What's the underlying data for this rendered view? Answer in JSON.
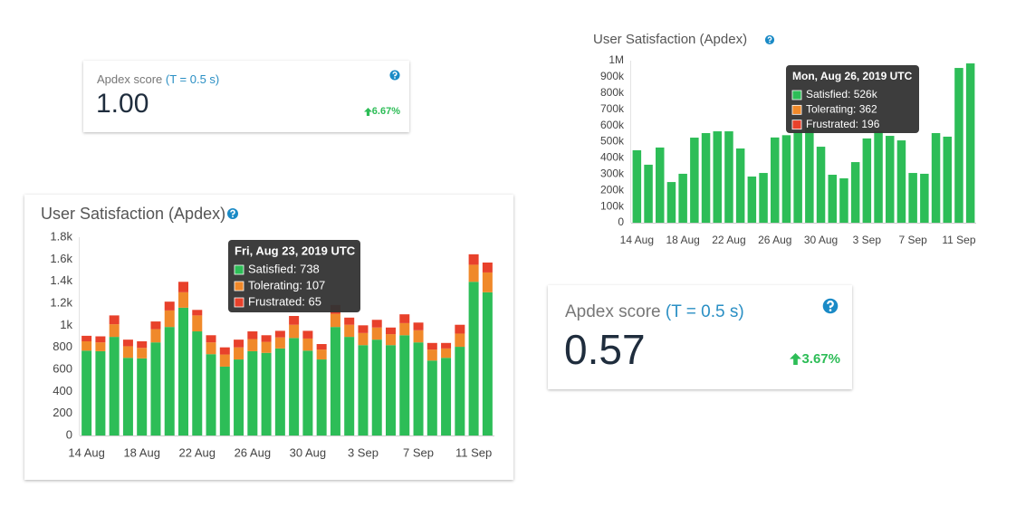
{
  "cards": [
    {
      "label": "Apdex score",
      "threshold": "(T = 0.5 s)",
      "score": "1.00",
      "change": "6.67%"
    },
    {
      "label": "Apdex score",
      "threshold": "(T = 0.5 s)",
      "score": "0.57",
      "change": "3.67%"
    }
  ],
  "chart_data": [
    {
      "type": "bar",
      "stacked": true,
      "title": "User Satisfaction (Apdex)",
      "grid": false,
      "categories": [
        "14 Aug",
        null,
        null,
        null,
        "18 Aug",
        null,
        null,
        null,
        "22 Aug",
        null,
        null,
        null,
        "26 Aug",
        null,
        null,
        null,
        "30 Aug",
        null,
        null,
        null,
        "3 Sep",
        null,
        null,
        null,
        "7 Sep",
        null,
        null,
        null,
        "11 Sep",
        null
      ],
      "series": [
        {
          "name": "Satisfied",
          "color": "#2dbd57",
          "values": [
            770,
            765,
            895,
            705,
            700,
            845,
            985,
            1160,
            945,
            738,
            625,
            690,
            765,
            750,
            790,
            885,
            770,
            690,
            985,
            895,
            820,
            870,
            820,
            910,
            845,
            680,
            705,
            805,
            1395,
            1300
          ]
        },
        {
          "name": "Tolerating",
          "color": "#f0892a",
          "values": [
            85,
            80,
            115,
            105,
            95,
            120,
            150,
            140,
            145,
            107,
            110,
            110,
            110,
            100,
            100,
            120,
            110,
            90,
            120,
            110,
            110,
            110,
            100,
            110,
            110,
            100,
            85,
            120,
            155,
            180
          ]
        },
        {
          "name": "Frustrated",
          "color": "#e8412b",
          "values": [
            50,
            55,
            80,
            60,
            60,
            70,
            80,
            95,
            50,
            65,
            65,
            70,
            70,
            60,
            60,
            80,
            70,
            50,
            80,
            65,
            70,
            70,
            60,
            80,
            70,
            60,
            50,
            80,
            95,
            90
          ]
        }
      ],
      "ylim": [
        0,
        1800
      ],
      "yticks": [
        0,
        200,
        400,
        600,
        800,
        {
          "value": 1000,
          "label": "1k"
        },
        {
          "value": 1200,
          "label": "1.2k"
        },
        {
          "value": 1400,
          "label": "1.4k"
        },
        {
          "value": 1600,
          "label": "1.6k"
        },
        {
          "value": 1800,
          "label": "1.8k"
        }
      ],
      "tooltip": {
        "title": "Fri, Aug 23, 2019 UTC",
        "rows": [
          {
            "text": "Satisfied: 738",
            "color": "#2dbd57"
          },
          {
            "text": "Tolerating: 107",
            "color": "#f0892a"
          },
          {
            "text": "Frustrated: 65",
            "color": "#e8412b"
          }
        ]
      }
    },
    {
      "type": "bar",
      "stacked": false,
      "title": "User Satisfaction (Apdex)",
      "grid": false,
      "categories": [
        "14 Aug",
        null,
        null,
        null,
        "18 Aug",
        null,
        null,
        null,
        "22 Aug",
        null,
        null,
        null,
        "26 Aug",
        null,
        null,
        null,
        "30 Aug",
        null,
        null,
        null,
        "3 Sep",
        null,
        null,
        null,
        "7 Sep",
        null,
        null,
        null,
        "11 Sep",
        null
      ],
      "series": [
        {
          "name": "Satisfied",
          "color": "#2dbd57",
          "values": [
            447000,
            358000,
            464000,
            251000,
            302000,
            525000,
            553000,
            564000,
            564000,
            458000,
            285000,
            307000,
            526000,
            540000,
            560000,
            592000,
            469000,
            296000,
            274000,
            374000,
            520000,
            564000,
            536000,
            508000,
            307000,
            302000,
            553000,
            531000,
            955000,
            983000
          ]
        }
      ],
      "ylim": [
        0,
        1000000
      ],
      "yticks": [
        0,
        {
          "value": 100000,
          "label": "100k"
        },
        {
          "value": 200000,
          "label": "200k"
        },
        {
          "value": 300000,
          "label": "300k"
        },
        {
          "value": 400000,
          "label": "400k"
        },
        {
          "value": 500000,
          "label": "500k"
        },
        {
          "value": 600000,
          "label": "600k"
        },
        {
          "value": 700000,
          "label": "700k"
        },
        {
          "value": 800000,
          "label": "800k"
        },
        {
          "value": 900000,
          "label": "900k"
        },
        {
          "value": 1000000,
          "label": "1M"
        }
      ],
      "tooltip": {
        "title": "Mon, Aug 26, 2019 UTC",
        "rows": [
          {
            "text": "Satisfied: 526k",
            "color": "#2dbd57"
          },
          {
            "text": "Tolerating: 362",
            "color": "#f0892a"
          },
          {
            "text": "Frustrated: 196",
            "color": "#e8412b"
          }
        ]
      }
    }
  ]
}
